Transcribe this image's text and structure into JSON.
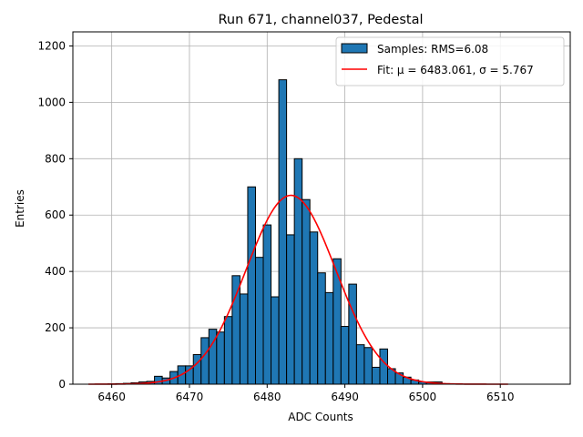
{
  "chart_data": {
    "type": "bar",
    "title": "Run 671, channel037, Pedestal",
    "xlabel": "ADC Counts",
    "ylabel": "Entries",
    "xlim": [
      6455,
      6519
    ],
    "ylim": [
      0,
      1250
    ],
    "grid": true,
    "legend_position": "top-right",
    "bin_width": 1,
    "xticks": [
      6460,
      6470,
      6480,
      6490,
      6500,
      6510
    ],
    "yticks": [
      0,
      200,
      400,
      600,
      800,
      1000,
      1200
    ],
    "histogram": {
      "name": "Samples: RMS=6.08",
      "color": "#1f77b4",
      "edgecolor": "#000000",
      "bins": [
        6460,
        6461,
        6462,
        6463,
        6464,
        6465,
        6466,
        6467,
        6468,
        6469,
        6470,
        6471,
        6472,
        6473,
        6474,
        6475,
        6476,
        6477,
        6478,
        6479,
        6480,
        6481,
        6482,
        6483,
        6484,
        6485,
        6486,
        6487,
        6488,
        6489,
        6490,
        6491,
        6492,
        6493,
        6494,
        6495,
        6496,
        6497,
        6498,
        6499,
        6500,
        6501,
        6502
      ],
      "values": [
        1,
        2,
        3,
        5,
        8,
        10,
        28,
        22,
        45,
        65,
        65,
        105,
        165,
        195,
        185,
        240,
        385,
        320,
        700,
        450,
        565,
        310,
        1080,
        530,
        800,
        655,
        540,
        395,
        325,
        445,
        205,
        355,
        140,
        130,
        60,
        125,
        55,
        40,
        25,
        15,
        8,
        8,
        8
      ]
    },
    "fit": {
      "name": "Fit: μ = 6483.061, σ = 5.767",
      "color": "#ff0000",
      "mu": 6483.061,
      "sigma": 5.767,
      "amplitude": 670,
      "x_range": [
        6457,
        6511
      ]
    }
  }
}
